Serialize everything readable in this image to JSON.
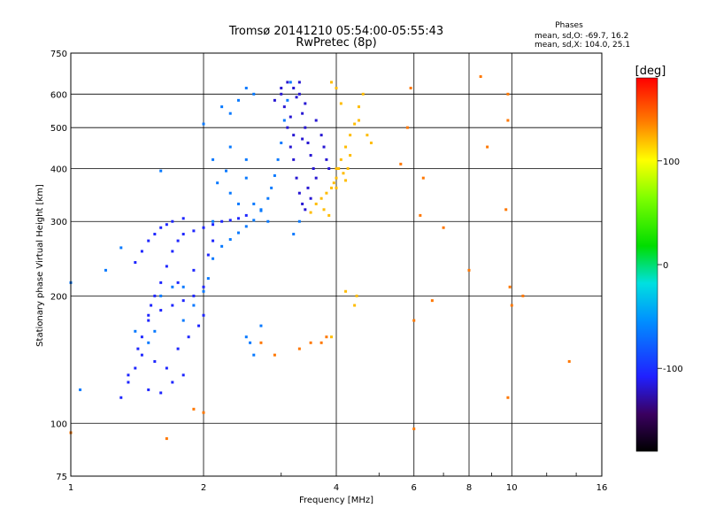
{
  "chart_data": {
    "type": "scatter",
    "title": "Tromsø 20141210 05:54:00-05:55:43",
    "subtitle": "RwPretec (8p)",
    "xlabel": "Frequency [MHz]",
    "ylabel": "Stationary phase Virtual Height [km]",
    "xscale": "log",
    "yscale": "log",
    "xlim": [
      1,
      16
    ],
    "ylim": [
      75,
      750
    ],
    "x_ticks": [
      1,
      2,
      4,
      6,
      8,
      10,
      16
    ],
    "y_ticks": [
      75,
      100,
      200,
      300,
      400,
      500,
      600,
      750
    ],
    "grid": true,
    "legend": {
      "title": "Phases",
      "lines": [
        "mean, sd,O: -69.7, 16.2",
        "mean, sd,X: 104.0, 25.1"
      ]
    },
    "colorbar": {
      "label": "[deg]",
      "range": [
        -180,
        180
      ],
      "ticks": [
        100,
        0,
        -100
      ]
    },
    "series": [
      {
        "name": "low F trace (blue)",
        "color_value": -105,
        "points": [
          [
            1.3,
            115
          ],
          [
            1.35,
            125
          ],
          [
            1.4,
            135
          ],
          [
            1.42,
            150
          ],
          [
            1.45,
            160
          ],
          [
            1.5,
            175
          ],
          [
            1.52,
            190
          ],
          [
            1.55,
            200
          ],
          [
            1.6,
            215
          ],
          [
            1.65,
            235
          ],
          [
            1.7,
            255
          ],
          [
            1.75,
            270
          ],
          [
            1.8,
            280
          ],
          [
            1.9,
            285
          ],
          [
            2.0,
            290
          ],
          [
            2.1,
            295
          ],
          [
            2.2,
            300
          ],
          [
            2.3,
            302
          ],
          [
            2.4,
            305
          ],
          [
            2.5,
            310
          ],
          [
            1.4,
            240
          ],
          [
            1.45,
            255
          ],
          [
            1.5,
            270
          ],
          [
            1.55,
            280
          ],
          [
            1.6,
            290
          ],
          [
            1.65,
            295
          ],
          [
            1.7,
            300
          ],
          [
            1.8,
            305
          ],
          [
            1.5,
            180
          ],
          [
            1.6,
            185
          ],
          [
            1.7,
            190
          ],
          [
            1.8,
            195
          ],
          [
            1.9,
            200
          ],
          [
            2.0,
            210
          ],
          [
            1.45,
            145
          ],
          [
            1.55,
            140
          ],
          [
            1.65,
            135
          ],
          [
            1.75,
            150
          ],
          [
            1.85,
            160
          ],
          [
            1.95,
            170
          ],
          [
            1.35,
            130
          ],
          [
            1.5,
            120
          ],
          [
            1.6,
            118
          ],
          [
            1.7,
            125
          ],
          [
            1.8,
            130
          ],
          [
            2.0,
            180
          ],
          [
            2.05,
            250
          ],
          [
            1.9,
            230
          ],
          [
            1.75,
            215
          ],
          [
            2.1,
            270
          ]
        ]
      },
      {
        "name": "mid F trace (cyan)",
        "color_value": -65,
        "points": [
          [
            1.4,
            165
          ],
          [
            1.5,
            155
          ],
          [
            1.55,
            165
          ],
          [
            1.6,
            200
          ],
          [
            1.7,
            210
          ],
          [
            1.8,
            175
          ],
          [
            1.9,
            190
          ],
          [
            2.0,
            205
          ],
          [
            2.05,
            220
          ],
          [
            2.1,
            245
          ],
          [
            2.2,
            262
          ],
          [
            2.3,
            272
          ],
          [
            2.4,
            282
          ],
          [
            2.5,
            292
          ],
          [
            2.6,
            302
          ],
          [
            2.7,
            318
          ],
          [
            2.8,
            340
          ],
          [
            2.85,
            360
          ],
          [
            2.9,
            385
          ],
          [
            2.95,
            420
          ],
          [
            3.0,
            460
          ],
          [
            3.05,
            520
          ],
          [
            3.1,
            580
          ],
          [
            3.15,
            640
          ],
          [
            2.5,
            160
          ],
          [
            2.6,
            145
          ],
          [
            2.55,
            155
          ],
          [
            2.7,
            170
          ],
          [
            2.4,
            580
          ],
          [
            2.5,
            620
          ],
          [
            2.6,
            600
          ],
          [
            2.2,
            560
          ],
          [
            2.3,
            540
          ],
          [
            1.6,
            395
          ],
          [
            2.0,
            510
          ],
          [
            2.1,
            420
          ],
          [
            2.3,
            450
          ],
          [
            2.5,
            420
          ],
          [
            2.4,
            330
          ],
          [
            2.6,
            330
          ],
          [
            2.7,
            320
          ],
          [
            2.8,
            300
          ],
          [
            2.3,
            350
          ],
          [
            2.5,
            380
          ],
          [
            2.1,
            300
          ],
          [
            1.3,
            260
          ],
          [
            1.2,
            230
          ],
          [
            1.0,
            215
          ],
          [
            1.05,
            120
          ],
          [
            1.8,
            210
          ],
          [
            2.15,
            370
          ],
          [
            2.25,
            395
          ],
          [
            3.2,
            280
          ],
          [
            3.3,
            300
          ]
        ]
      },
      {
        "name": "F region column (deep blue)",
        "color_value": -118,
        "points": [
          [
            3.0,
            600
          ],
          [
            3.05,
            560
          ],
          [
            3.1,
            500
          ],
          [
            3.15,
            450
          ],
          [
            3.2,
            420
          ],
          [
            3.25,
            380
          ],
          [
            3.3,
            350
          ],
          [
            3.35,
            330
          ],
          [
            3.4,
            320
          ],
          [
            3.2,
            620
          ],
          [
            3.3,
            640
          ],
          [
            3.25,
            590
          ],
          [
            3.35,
            540
          ],
          [
            3.4,
            500
          ],
          [
            3.45,
            460
          ],
          [
            3.5,
            430
          ],
          [
            3.55,
            400
          ],
          [
            3.6,
            380
          ],
          [
            3.1,
            640
          ],
          [
            3.3,
            600
          ],
          [
            3.4,
            570
          ],
          [
            3.6,
            520
          ],
          [
            3.7,
            480
          ],
          [
            3.75,
            450
          ],
          [
            3.8,
            420
          ],
          [
            3.85,
            400
          ],
          [
            3.0,
            620
          ],
          [
            2.9,
            580
          ],
          [
            3.15,
            530
          ],
          [
            3.2,
            480
          ],
          [
            3.35,
            470
          ],
          [
            3.45,
            360
          ],
          [
            3.5,
            340
          ]
        ]
      },
      {
        "name": "X trace (orange/yellow)",
        "color_value": 120,
        "points": [
          [
            3.6,
            330
          ],
          [
            3.7,
            340
          ],
          [
            3.8,
            350
          ],
          [
            3.9,
            360
          ],
          [
            4.0,
            380
          ],
          [
            4.05,
            400
          ],
          [
            4.1,
            420
          ],
          [
            4.2,
            450
          ],
          [
            4.3,
            480
          ],
          [
            4.4,
            510
          ],
          [
            4.5,
            560
          ],
          [
            4.6,
            600
          ],
          [
            4.0,
            620
          ],
          [
            3.9,
            640
          ],
          [
            4.1,
            570
          ],
          [
            4.3,
            430
          ],
          [
            4.25,
            400
          ],
          [
            4.2,
            375
          ],
          [
            3.75,
            320
          ],
          [
            3.85,
            310
          ],
          [
            4.0,
            360
          ],
          [
            4.15,
            390
          ],
          [
            4.4,
            190
          ],
          [
            4.45,
            200
          ],
          [
            4.0,
            400
          ],
          [
            3.95,
            370
          ],
          [
            3.5,
            315
          ],
          [
            4.2,
            205
          ],
          [
            3.9,
            160
          ],
          [
            4.5,
            520
          ],
          [
            4.7,
            480
          ],
          [
            4.8,
            460
          ]
        ]
      },
      {
        "name": "scattered echoes",
        "color_value": 140,
        "points": [
          [
            9.8,
            520
          ],
          [
            9.8,
            600
          ],
          [
            8.8,
            450
          ],
          [
            9.7,
            320
          ],
          [
            9.9,
            210
          ],
          [
            10.0,
            190
          ],
          [
            10.6,
            200
          ],
          [
            9.8,
            115
          ],
          [
            6.2,
            310
          ],
          [
            7.0,
            290
          ],
          [
            8.0,
            230
          ],
          [
            6.0,
            175
          ],
          [
            6.6,
            195
          ],
          [
            5.8,
            500
          ],
          [
            5.9,
            620
          ],
          [
            8.5,
            660
          ],
          [
            13.5,
            140
          ],
          [
            6.0,
            97
          ],
          [
            3.7,
            155
          ],
          [
            3.8,
            160
          ],
          [
            1.9,
            108
          ],
          [
            2.0,
            106
          ],
          [
            1.65,
            92
          ],
          [
            1.0,
            95
          ],
          [
            5.6,
            410
          ],
          [
            6.3,
            380
          ],
          [
            3.5,
            155
          ],
          [
            3.3,
            150
          ],
          [
            2.7,
            155
          ],
          [
            2.9,
            145
          ]
        ]
      }
    ]
  }
}
